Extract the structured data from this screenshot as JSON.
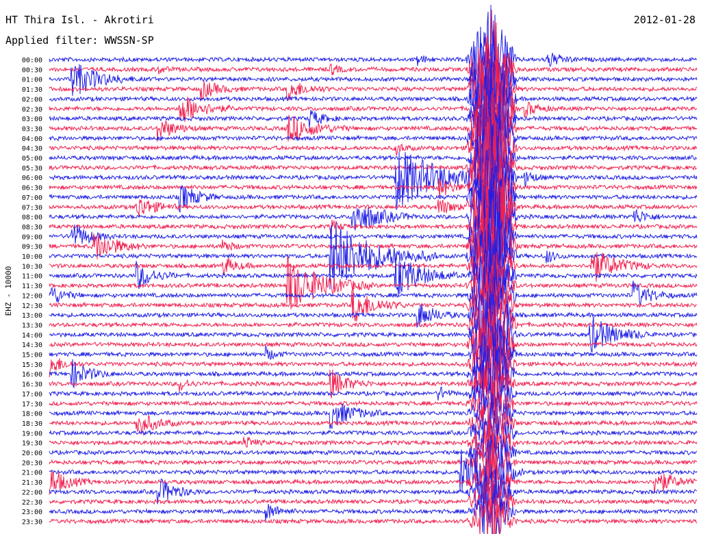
{
  "header": {
    "station": "HT Thira Isl. - Akrotiri",
    "filter": "Applied filter: WWSSN-SP",
    "date": "2012-01-28"
  },
  "colors": {
    "blue": "#1f1fe6",
    "red": "#f0204f"
  },
  "chart_data": {
    "type": "line",
    "title": "HT Thira Isl. - Akrotiri",
    "ylabel": "EHZ - 10000",
    "rows": [
      "00:00",
      "00:30",
      "01:00",
      "01:30",
      "02:00",
      "02:30",
      "03:00",
      "03:30",
      "04:00",
      "04:30",
      "05:00",
      "05:30",
      "06:00",
      "06:30",
      "07:00",
      "07:30",
      "08:00",
      "08:30",
      "09:00",
      "09:30",
      "10:00",
      "10:30",
      "11:00",
      "11:30",
      "12:00",
      "12:30",
      "13:00",
      "13:30",
      "14:00",
      "14:30",
      "15:00",
      "15:30",
      "16:00",
      "16:30",
      "17:00",
      "17:30",
      "18:00",
      "18:30",
      "19:00",
      "19:30",
      "20:00",
      "20:30",
      "21:00",
      "21:30",
      "22:00",
      "22:30",
      "23:00",
      "23:30"
    ],
    "row_colors": [
      "blue",
      "red"
    ],
    "minutes_per_row": 30,
    "events": [
      {
        "row": 0,
        "minute": 23,
        "amp": 1.0,
        "len": 1.5
      },
      {
        "row": 0,
        "minute": 17,
        "amp": 0.6,
        "len": 1.0
      },
      {
        "row": 1,
        "minute": 13,
        "amp": 0.6,
        "len": 1.0
      },
      {
        "row": 1,
        "minute": 5,
        "amp": 0.5,
        "len": 0.8
      },
      {
        "row": 2,
        "minute": 1,
        "amp": 2.0,
        "len": 3.0
      },
      {
        "row": 3,
        "minute": 7,
        "amp": 1.0,
        "len": 2.0
      },
      {
        "row": 3,
        "minute": 11,
        "amp": 1.2,
        "len": 2.0
      },
      {
        "row": 5,
        "minute": 6,
        "amp": 1.8,
        "len": 2.5
      },
      {
        "row": 5,
        "minute": 22,
        "amp": 0.8,
        "len": 1.5
      },
      {
        "row": 6,
        "minute": 12,
        "amp": 1.0,
        "len": 1.5
      },
      {
        "row": 7,
        "minute": 5,
        "amp": 1.2,
        "len": 2.0
      },
      {
        "row": 7,
        "minute": 11,
        "amp": 1.5,
        "len": 3.0
      },
      {
        "row": 9,
        "minute": 16,
        "amp": 0.7,
        "len": 1.0
      },
      {
        "row": 12,
        "minute": 16,
        "amp": 3.5,
        "len": 5.0
      },
      {
        "row": 12,
        "minute": 22,
        "amp": 1.0,
        "len": 1.0
      },
      {
        "row": 13,
        "minute": 18,
        "amp": 1.2,
        "len": 1.5
      },
      {
        "row": 14,
        "minute": 6,
        "amp": 1.5,
        "len": 2.0
      },
      {
        "row": 15,
        "minute": 4,
        "amp": 1.3,
        "len": 2.0
      },
      {
        "row": 15,
        "minute": 18,
        "amp": 1.0,
        "len": 1.5
      },
      {
        "row": 16,
        "minute": 14,
        "amp": 2.0,
        "len": 3.0
      },
      {
        "row": 16,
        "minute": 27,
        "amp": 1.0,
        "len": 1.5
      },
      {
        "row": 17,
        "minute": 13,
        "amp": 0.8,
        "len": 1.0
      },
      {
        "row": 18,
        "minute": 1,
        "amp": 1.5,
        "len": 2.0
      },
      {
        "row": 19,
        "minute": 2,
        "amp": 1.8,
        "len": 2.5
      },
      {
        "row": 19,
        "minute": 8,
        "amp": 0.8,
        "len": 1.0
      },
      {
        "row": 20,
        "minute": 13,
        "amp": 4.0,
        "len": 5.0
      },
      {
        "row": 20,
        "minute": 23,
        "amp": 0.8,
        "len": 1.0
      },
      {
        "row": 21,
        "minute": 8,
        "amp": 1.0,
        "len": 1.5
      },
      {
        "row": 21,
        "minute": 25,
        "amp": 2.0,
        "len": 3.0
      },
      {
        "row": 22,
        "minute": 4,
        "amp": 1.5,
        "len": 2.0
      },
      {
        "row": 22,
        "minute": 16,
        "amp": 2.5,
        "len": 3.0
      },
      {
        "row": 23,
        "minute": 11,
        "amp": 3.0,
        "len": 4.0
      },
      {
        "row": 24,
        "minute": 0,
        "amp": 1.2,
        "len": 1.5
      },
      {
        "row": 24,
        "minute": 27,
        "amp": 1.5,
        "len": 2.0
      },
      {
        "row": 25,
        "minute": 14,
        "amp": 2.0,
        "len": 2.5
      },
      {
        "row": 26,
        "minute": 17,
        "amp": 1.5,
        "len": 2.0
      },
      {
        "row": 27,
        "minute": 21,
        "amp": 0.8,
        "len": 1.0
      },
      {
        "row": 28,
        "minute": 25,
        "amp": 2.0,
        "len": 3.0
      },
      {
        "row": 30,
        "minute": 10,
        "amp": 0.8,
        "len": 1.0
      },
      {
        "row": 31,
        "minute": 0,
        "amp": 1.2,
        "len": 1.5
      },
      {
        "row": 32,
        "minute": 1,
        "amp": 1.5,
        "len": 2.0
      },
      {
        "row": 33,
        "minute": 13,
        "amp": 1.5,
        "len": 2.0
      },
      {
        "row": 33,
        "minute": 6,
        "amp": 0.8,
        "len": 1.0
      },
      {
        "row": 34,
        "minute": 18,
        "amp": 0.8,
        "len": 1.0
      },
      {
        "row": 36,
        "minute": 13,
        "amp": 1.6,
        "len": 2.5
      },
      {
        "row": 37,
        "minute": 4,
        "amp": 1.5,
        "len": 2.0
      },
      {
        "row": 39,
        "minute": 9,
        "amp": 0.8,
        "len": 1.0
      },
      {
        "row": 42,
        "minute": 19,
        "amp": 2.5,
        "len": 3.0
      },
      {
        "row": 43,
        "minute": 0,
        "amp": 1.5,
        "len": 2.0
      },
      {
        "row": 43,
        "minute": 28,
        "amp": 1.5,
        "len": 2.0
      },
      {
        "row": 44,
        "minute": 5,
        "amp": 1.5,
        "len": 2.0
      },
      {
        "row": 46,
        "minute": 10,
        "amp": 1.0,
        "len": 1.5
      },
      {
        "row": 46,
        "minute": 20,
        "amp": 1.2,
        "len": 1.5
      }
    ],
    "big_event": {
      "start_row": 0,
      "end_row": 47,
      "minute": 20.5,
      "amp": 6.0
    }
  }
}
